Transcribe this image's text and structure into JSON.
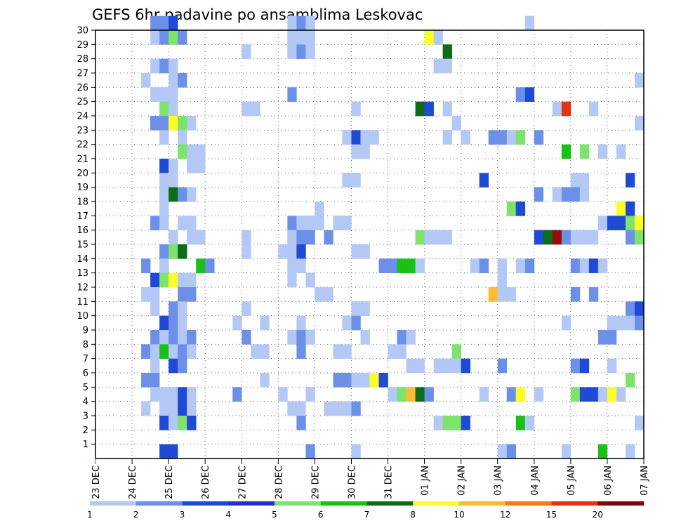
{
  "chart_data": {
    "type": "heatmap",
    "title": "GEFS 6hr padavine po ansamblima Leskovac",
    "xlabel": "",
    "ylabel": "",
    "x_ticks": [
      "23 DEC",
      "24 DEC",
      "25 DEC",
      "26 DEC",
      "27 DEC",
      "28 DEC",
      "29 DEC",
      "30 DEC",
      "31 DEC",
      "01 JAN",
      "02 JAN",
      "03 JAN",
      "04 JAN",
      "05 JAN",
      "06 JAN",
      "07 JAN"
    ],
    "y_ticks": [
      "1",
      "2",
      "3",
      "4",
      "5",
      "6",
      "7",
      "8",
      "9",
      "10",
      "11",
      "12",
      "13",
      "14",
      "15",
      "16",
      "17",
      "18",
      "19",
      "20",
      "21",
      "22",
      "23",
      "24",
      "25",
      "26",
      "27",
      "28",
      "29",
      "30"
    ],
    "xlim": [
      0,
      60
    ],
    "ylim": [
      0,
      30
    ],
    "grid": true,
    "legend_labels": [
      "1",
      "2",
      "3",
      "4",
      "5",
      "6",
      "7",
      "8",
      "10",
      "12",
      "15",
      "20"
    ],
    "legend_colors": [
      "#b4c8f5",
      "#6c8fe8",
      "#1f4ad6",
      "#2032c8",
      "#7de36a",
      "#18c018",
      "#0c6c18",
      "#ffff28",
      "#ffba32",
      "#ff7814",
      "#e63214",
      "#7a0a0a"
    ],
    "cell_colors": {
      "1": "#b4c8f5",
      "2": "#6c8fe8",
      "3": "#1f4ad6",
      "4": "#7de36a",
      "5": "#18c018",
      "6": "#0c6c18",
      "7": "#ffff28",
      "8": "#ffba32",
      "9": "#ff7814",
      "10": "#e63214",
      "11": "#9a0a0a"
    },
    "cells": [
      [
        30,
        7,
        2
      ],
      [
        30,
        8,
        2
      ],
      [
        30,
        9,
        3
      ],
      [
        30,
        22,
        1
      ],
      [
        30,
        23,
        2
      ],
      [
        30,
        24,
        1
      ],
      [
        30,
        48,
        1
      ],
      [
        29,
        7,
        1
      ],
      [
        29,
        8,
        2
      ],
      [
        29,
        9,
        4
      ],
      [
        29,
        10,
        2
      ],
      [
        29,
        22,
        1
      ],
      [
        29,
        23,
        1
      ],
      [
        29,
        24,
        1
      ],
      [
        29,
        37,
        7
      ],
      [
        29,
        38,
        1
      ],
      [
        28,
        17,
        1
      ],
      [
        28,
        22,
        1
      ],
      [
        28,
        23,
        2
      ],
      [
        28,
        24,
        1
      ],
      [
        28,
        39,
        6
      ],
      [
        27,
        7,
        1
      ],
      [
        27,
        8,
        2
      ],
      [
        27,
        9,
        1
      ],
      [
        27,
        38,
        1
      ],
      [
        27,
        39,
        1
      ],
      [
        26,
        6,
        1
      ],
      [
        26,
        9,
        1
      ],
      [
        26,
        10,
        2
      ],
      [
        26,
        60,
        1
      ],
      [
        25,
        7,
        1
      ],
      [
        25,
        8,
        1
      ],
      [
        25,
        9,
        1
      ],
      [
        25,
        22,
        2
      ],
      [
        25,
        47,
        2
      ],
      [
        25,
        48,
        3
      ],
      [
        24,
        8,
        4
      ],
      [
        24,
        9,
        1
      ],
      [
        24,
        17,
        1
      ],
      [
        24,
        18,
        1
      ],
      [
        24,
        29,
        1
      ],
      [
        24,
        36,
        6
      ],
      [
        24,
        37,
        3
      ],
      [
        24,
        39,
        1
      ],
      [
        24,
        51,
        1
      ],
      [
        24,
        52,
        10
      ],
      [
        24,
        55,
        1
      ],
      [
        23,
        7,
        2
      ],
      [
        23,
        8,
        2
      ],
      [
        23,
        9,
        7
      ],
      [
        23,
        10,
        4
      ],
      [
        23,
        11,
        1
      ],
      [
        23,
        40,
        1
      ],
      [
        23,
        60,
        1
      ],
      [
        22,
        8,
        1
      ],
      [
        22,
        10,
        1
      ],
      [
        22,
        28,
        1
      ],
      [
        22,
        29,
        3
      ],
      [
        22,
        30,
        1
      ],
      [
        22,
        31,
        1
      ],
      [
        22,
        39,
        1
      ],
      [
        22,
        41,
        1
      ],
      [
        22,
        44,
        2
      ],
      [
        22,
        45,
        2
      ],
      [
        22,
        46,
        1
      ],
      [
        22,
        47,
        4
      ],
      [
        22,
        49,
        2
      ],
      [
        21,
        10,
        4
      ],
      [
        21,
        11,
        1
      ],
      [
        21,
        12,
        1
      ],
      [
        21,
        29,
        1
      ],
      [
        21,
        30,
        1
      ],
      [
        21,
        52,
        5
      ],
      [
        21,
        54,
        4
      ],
      [
        21,
        56,
        1
      ],
      [
        21,
        58,
        1
      ],
      [
        20,
        8,
        3
      ],
      [
        20,
        9,
        1
      ],
      [
        20,
        11,
        1
      ],
      [
        20,
        12,
        1
      ],
      [
        19,
        8,
        1
      ],
      [
        19,
        9,
        1
      ],
      [
        19,
        28,
        1
      ],
      [
        19,
        29,
        1
      ],
      [
        19,
        43,
        3
      ],
      [
        19,
        53,
        1
      ],
      [
        19,
        54,
        1
      ],
      [
        19,
        59,
        3
      ],
      [
        18,
        8,
        1
      ],
      [
        18,
        9,
        6
      ],
      [
        18,
        10,
        2
      ],
      [
        18,
        11,
        1
      ],
      [
        18,
        49,
        2
      ],
      [
        18,
        51,
        1
      ],
      [
        18,
        52,
        2
      ],
      [
        18,
        53,
        2
      ],
      [
        18,
        54,
        1
      ],
      [
        17,
        8,
        1
      ],
      [
        17,
        25,
        1
      ],
      [
        17,
        46,
        4
      ],
      [
        17,
        47,
        3
      ],
      [
        17,
        58,
        7
      ],
      [
        17,
        59,
        3
      ],
      [
        16,
        7,
        2
      ],
      [
        16,
        8,
        1
      ],
      [
        16,
        10,
        1
      ],
      [
        16,
        11,
        1
      ],
      [
        16,
        22,
        2
      ],
      [
        16,
        23,
        1
      ],
      [
        16,
        24,
        1
      ],
      [
        16,
        25,
        1
      ],
      [
        16,
        27,
        1
      ],
      [
        16,
        28,
        1
      ],
      [
        16,
        56,
        1
      ],
      [
        16,
        57,
        3
      ],
      [
        16,
        58,
        3
      ],
      [
        16,
        59,
        4
      ],
      [
        16,
        60,
        7
      ],
      [
        15,
        9,
        1
      ],
      [
        15,
        11,
        1
      ],
      [
        15,
        12,
        1
      ],
      [
        15,
        17,
        1
      ],
      [
        15,
        22,
        1
      ],
      [
        15,
        23,
        2
      ],
      [
        15,
        24,
        2
      ],
      [
        15,
        26,
        2
      ],
      [
        15,
        36,
        4
      ],
      [
        15,
        37,
        1
      ],
      [
        15,
        38,
        1
      ],
      [
        15,
        39,
        1
      ],
      [
        15,
        49,
        3
      ],
      [
        15,
        50,
        6
      ],
      [
        15,
        51,
        11
      ],
      [
        15,
        52,
        2
      ],
      [
        15,
        53,
        1
      ],
      [
        15,
        54,
        1
      ],
      [
        15,
        55,
        1
      ],
      [
        15,
        59,
        2
      ],
      [
        15,
        60,
        4
      ],
      [
        14,
        8,
        2
      ],
      [
        14,
        9,
        4
      ],
      [
        14,
        10,
        6
      ],
      [
        14,
        17,
        1
      ],
      [
        14,
        21,
        1
      ],
      [
        14,
        22,
        1
      ],
      [
        14,
        23,
        3
      ],
      [
        14,
        29,
        1
      ],
      [
        14,
        30,
        1
      ],
      [
        13,
        6,
        2
      ],
      [
        13,
        8,
        1
      ],
      [
        13,
        12,
        5
      ],
      [
        13,
        13,
        2
      ],
      [
        13,
        22,
        1
      ],
      [
        13,
        23,
        1
      ],
      [
        13,
        32,
        2
      ],
      [
        13,
        33,
        2
      ],
      [
        13,
        34,
        5
      ],
      [
        13,
        35,
        5
      ],
      [
        13,
        36,
        1
      ],
      [
        13,
        42,
        1
      ],
      [
        13,
        43,
        2
      ],
      [
        13,
        45,
        1
      ],
      [
        13,
        47,
        1
      ],
      [
        13,
        48,
        2
      ],
      [
        13,
        53,
        2
      ],
      [
        13,
        54,
        1
      ],
      [
        13,
        55,
        3
      ],
      [
        13,
        56,
        1
      ],
      [
        12,
        7,
        3
      ],
      [
        12,
        8,
        4
      ],
      [
        12,
        9,
        7
      ],
      [
        12,
        10,
        1
      ],
      [
        12,
        11,
        1
      ],
      [
        12,
        22,
        1
      ],
      [
        12,
        24,
        1
      ],
      [
        12,
        45,
        1
      ],
      [
        11,
        6,
        1
      ],
      [
        11,
        7,
        1
      ],
      [
        11,
        10,
        2
      ],
      [
        11,
        11,
        2
      ],
      [
        11,
        25,
        1
      ],
      [
        11,
        26,
        1
      ],
      [
        11,
        44,
        8
      ],
      [
        11,
        45,
        1
      ],
      [
        11,
        46,
        1
      ],
      [
        11,
        53,
        2
      ],
      [
        11,
        55,
        2
      ],
      [
        10,
        7,
        1
      ],
      [
        10,
        9,
        2
      ],
      [
        10,
        10,
        1
      ],
      [
        10,
        17,
        1
      ],
      [
        10,
        29,
        1
      ],
      [
        10,
        30,
        1
      ],
      [
        10,
        59,
        2
      ],
      [
        10,
        60,
        3
      ],
      [
        9,
        8,
        3
      ],
      [
        9,
        9,
        2
      ],
      [
        9,
        10,
        1
      ],
      [
        9,
        16,
        1
      ],
      [
        9,
        19,
        1
      ],
      [
        9,
        23,
        1
      ],
      [
        9,
        28,
        1
      ],
      [
        9,
        29,
        2
      ],
      [
        9,
        52,
        1
      ],
      [
        9,
        57,
        1
      ],
      [
        9,
        58,
        1
      ],
      [
        9,
        59,
        1
      ],
      [
        9,
        60,
        2
      ],
      [
        8,
        7,
        2
      ],
      [
        8,
        8,
        1
      ],
      [
        8,
        9,
        2
      ],
      [
        8,
        10,
        1
      ],
      [
        8,
        11,
        2
      ],
      [
        8,
        17,
        2
      ],
      [
        8,
        22,
        1
      ],
      [
        8,
        23,
        2
      ],
      [
        8,
        24,
        1
      ],
      [
        8,
        30,
        1
      ],
      [
        8,
        34,
        2
      ],
      [
        8,
        35,
        1
      ],
      [
        8,
        56,
        2
      ],
      [
        8,
        57,
        2
      ],
      [
        7,
        6,
        2
      ],
      [
        7,
        7,
        1
      ],
      [
        7,
        8,
        5
      ],
      [
        7,
        9,
        1
      ],
      [
        7,
        10,
        2
      ],
      [
        7,
        11,
        1
      ],
      [
        7,
        18,
        1
      ],
      [
        7,
        19,
        1
      ],
      [
        7,
        23,
        2
      ],
      [
        7,
        27,
        1
      ],
      [
        7,
        28,
        1
      ],
      [
        7,
        33,
        1
      ],
      [
        7,
        34,
        1
      ],
      [
        7,
        40,
        4
      ],
      [
        6,
        7,
        1
      ],
      [
        6,
        9,
        3
      ],
      [
        6,
        10,
        2
      ],
      [
        6,
        35,
        1
      ],
      [
        6,
        36,
        1
      ],
      [
        6,
        38,
        1
      ],
      [
        6,
        39,
        1
      ],
      [
        6,
        40,
        1
      ],
      [
        6,
        41,
        3
      ],
      [
        6,
        45,
        2
      ],
      [
        6,
        53,
        2
      ],
      [
        6,
        54,
        3
      ],
      [
        6,
        57,
        1
      ],
      [
        5,
        6,
        2
      ],
      [
        5,
        7,
        2
      ],
      [
        5,
        19,
        1
      ],
      [
        5,
        27,
        2
      ],
      [
        5,
        28,
        2
      ],
      [
        5,
        29,
        1
      ],
      [
        5,
        30,
        1
      ],
      [
        5,
        31,
        7
      ],
      [
        5,
        32,
        3
      ],
      [
        5,
        59,
        4
      ],
      [
        4,
        7,
        1
      ],
      [
        4,
        8,
        1
      ],
      [
        4,
        9,
        1
      ],
      [
        4,
        10,
        3
      ],
      [
        4,
        11,
        1
      ],
      [
        4,
        16,
        2
      ],
      [
        4,
        21,
        1
      ],
      [
        4,
        24,
        1
      ],
      [
        4,
        33,
        1
      ],
      [
        4,
        34,
        4
      ],
      [
        4,
        35,
        8
      ],
      [
        4,
        36,
        6
      ],
      [
        4,
        37,
        2
      ],
      [
        4,
        43,
        1
      ],
      [
        4,
        46,
        2
      ],
      [
        4,
        47,
        7
      ],
      [
        4,
        49,
        1
      ],
      [
        4,
        53,
        4
      ],
      [
        4,
        54,
        3
      ],
      [
        4,
        55,
        3
      ],
      [
        4,
        56,
        1
      ],
      [
        4,
        57,
        7
      ],
      [
        4,
        58,
        1
      ],
      [
        3,
        6,
        1
      ],
      [
        3,
        8,
        1
      ],
      [
        3,
        9,
        1
      ],
      [
        3,
        10,
        3
      ],
      [
        3,
        11,
        1
      ],
      [
        3,
        22,
        1
      ],
      [
        3,
        23,
        1
      ],
      [
        3,
        26,
        1
      ],
      [
        3,
        27,
        1
      ],
      [
        3,
        28,
        1
      ],
      [
        3,
        29,
        2
      ],
      [
        2,
        8,
        3
      ],
      [
        2,
        9,
        1
      ],
      [
        2,
        10,
        4
      ],
      [
        2,
        11,
        3
      ],
      [
        2,
        23,
        2
      ],
      [
        2,
        38,
        1
      ],
      [
        2,
        39,
        4
      ],
      [
        2,
        40,
        4
      ],
      [
        2,
        41,
        3
      ],
      [
        2,
        47,
        5
      ],
      [
        2,
        48,
        1
      ],
      [
        2,
        60,
        1
      ],
      [
        0,
        8,
        3
      ],
      [
        0,
        9,
        3
      ],
      [
        0,
        24,
        2
      ],
      [
        0,
        29,
        1
      ],
      [
        0,
        45,
        1
      ],
      [
        0,
        46,
        2
      ],
      [
        0,
        52,
        1
      ],
      [
        0,
        56,
        5
      ],
      [
        0,
        59,
        1
      ]
    ]
  }
}
